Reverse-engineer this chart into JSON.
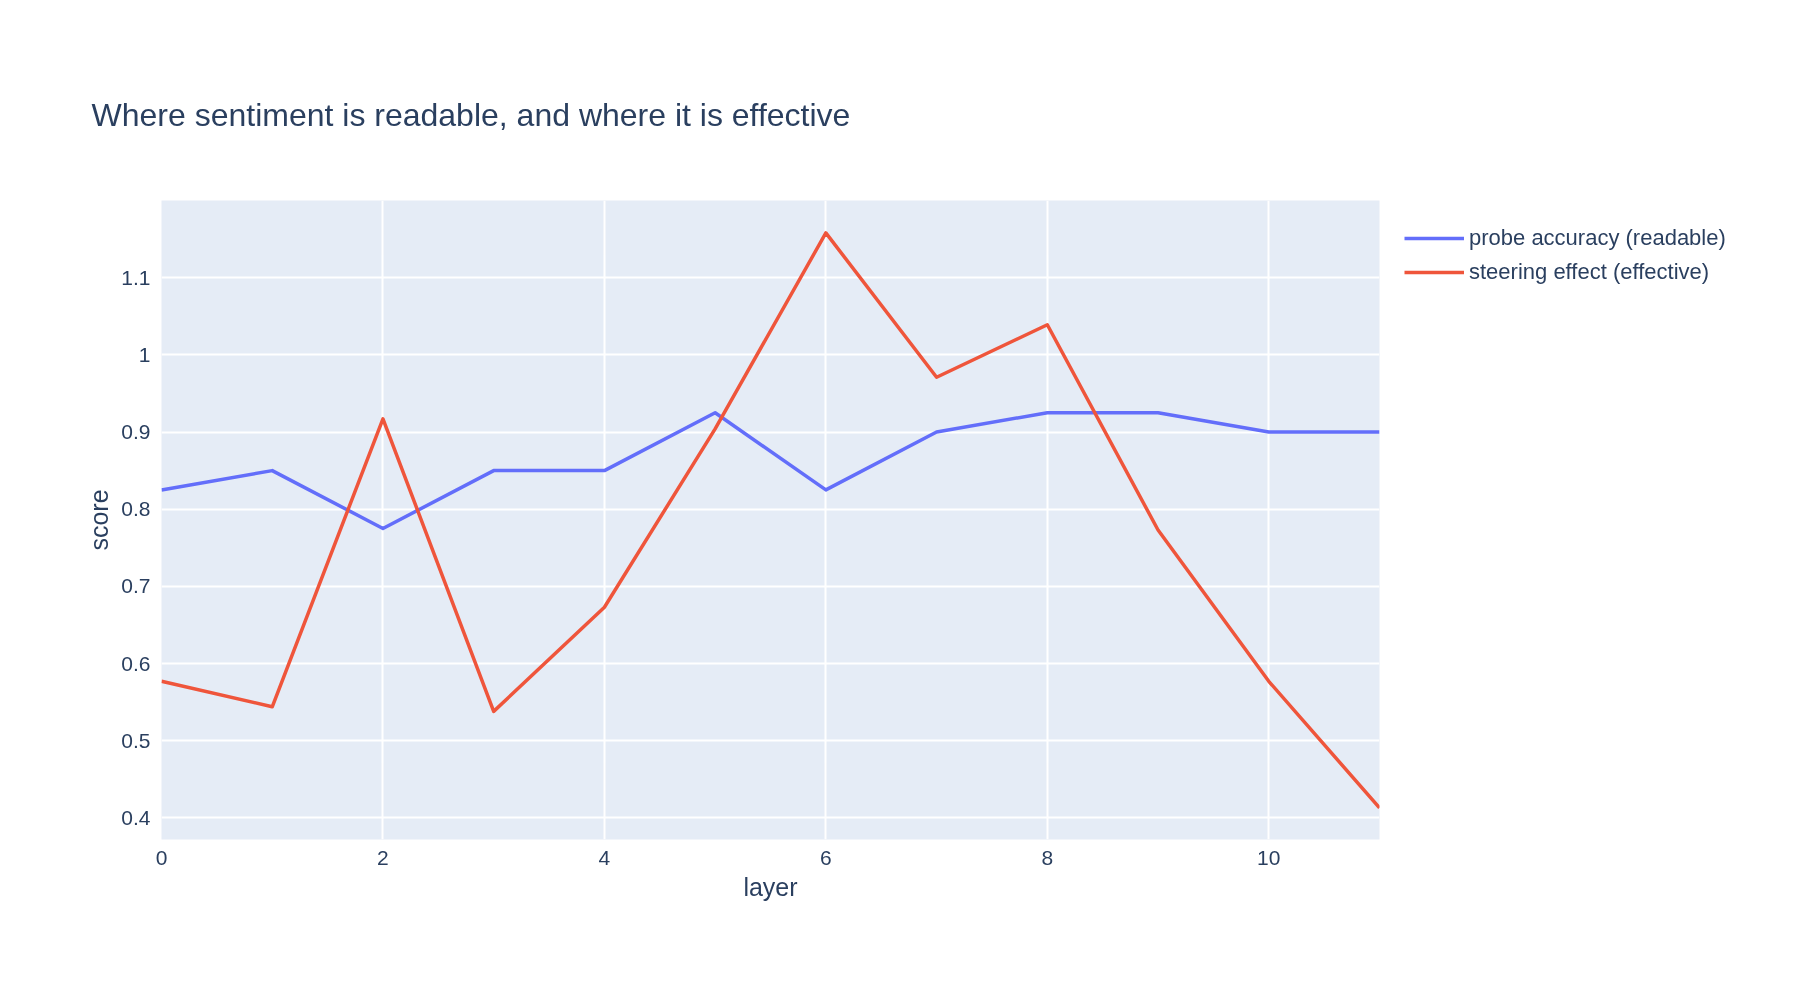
{
  "chart_data": {
    "type": "line",
    "title": "Where sentiment is readable, and where it is effective",
    "xlabel": "layer",
    "ylabel": "score",
    "x": [
      0,
      1,
      2,
      3,
      4,
      5,
      6,
      7,
      8,
      9,
      10,
      11
    ],
    "series": [
      {
        "name": "probe accuracy (readable)",
        "color": "#636efa",
        "values": [
          0.825,
          0.85,
          0.775,
          0.85,
          0.85,
          0.925,
          0.825,
          0.9,
          0.925,
          0.925,
          0.9,
          0.9
        ]
      },
      {
        "name": "steering effect (effective)",
        "color": "#ef553b",
        "values": [
          0.577,
          0.544,
          0.917,
          0.538,
          0.673,
          0.904,
          1.158,
          0.971,
          1.039,
          0.773,
          0.577,
          0.413
        ]
      }
    ],
    "xlim": [
      0,
      11
    ],
    "ylim": [
      0.372,
      1.2
    ],
    "xticks": [
      0,
      2,
      4,
      6,
      8,
      10
    ],
    "yticks": [
      0.4,
      0.5,
      0.6,
      0.7,
      0.8,
      0.9,
      1,
      1.1
    ],
    "grid": true,
    "legend": "top right",
    "marker": "none",
    "line_style": "solid"
  }
}
